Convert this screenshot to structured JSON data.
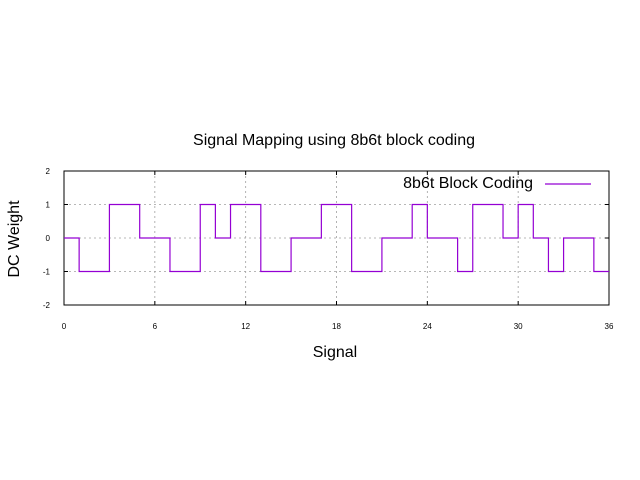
{
  "chart_data": {
    "type": "line",
    "title": "Signal Mapping using 8b6t block coding",
    "xlabel": "Signal",
    "ylabel": "DC Weight",
    "xlim": [
      0,
      36
    ],
    "ylim": [
      -2,
      2
    ],
    "xticks": [
      0,
      6,
      12,
      18,
      24,
      30,
      36
    ],
    "yticks": [
      -2,
      -1,
      0,
      1,
      2
    ],
    "grid": true,
    "legend_position": "top-right",
    "step": "post",
    "series": [
      {
        "name": "8b6t Block Coding",
        "color": "#9400d3",
        "x": [
          0,
          1,
          2,
          3,
          4,
          5,
          6,
          7,
          8,
          9,
          10,
          11,
          12,
          13,
          14,
          15,
          16,
          17,
          18,
          19,
          20,
          21,
          22,
          23,
          24,
          25,
          26,
          27,
          28,
          29,
          30,
          31,
          32,
          33,
          34,
          35,
          36
        ],
        "y": [
          0,
          -1,
          -1,
          1,
          1,
          0,
          0,
          -1,
          -1,
          1,
          0,
          1,
          1,
          -1,
          -1,
          0,
          0,
          1,
          1,
          -1,
          -1,
          0,
          0,
          1,
          0,
          0,
          -1,
          1,
          1,
          0,
          1,
          0,
          -1,
          0,
          0,
          -1,
          -1
        ]
      }
    ]
  }
}
